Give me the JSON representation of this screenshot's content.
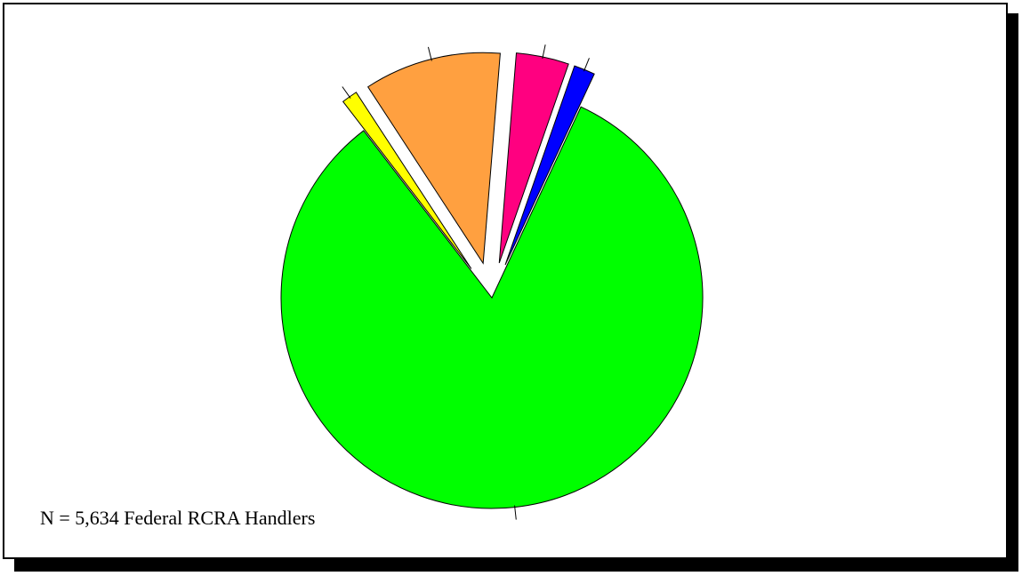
{
  "chart_data": {
    "type": "pie",
    "title": "",
    "slices": [
      {
        "value": 81.9,
        "color": "#00ff00",
        "exploded": false
      },
      {
        "value": 1.2,
        "color": "#ffff00",
        "exploded": true
      },
      {
        "value": 10.4,
        "color": "#ffa040",
        "exploded": true
      },
      {
        "value": 4.0,
        "color": "#ff0080",
        "exploded": true
      },
      {
        "value": 1.6,
        "color": "#0000ff",
        "exploded": true
      }
    ],
    "note": "N = 5,634 Federal RCRA Handlers"
  }
}
